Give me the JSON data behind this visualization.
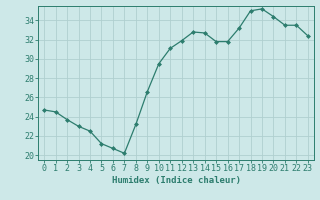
{
  "x": [
    0,
    1,
    2,
    3,
    4,
    5,
    6,
    7,
    8,
    9,
    10,
    11,
    12,
    13,
    14,
    15,
    16,
    17,
    18,
    19,
    20,
    21,
    22,
    23
  ],
  "y": [
    24.7,
    24.5,
    23.7,
    23.0,
    22.5,
    21.2,
    20.7,
    20.2,
    23.2,
    26.6,
    29.5,
    31.1,
    31.9,
    32.8,
    32.7,
    31.8,
    31.8,
    33.2,
    35.0,
    35.2,
    34.4,
    33.5,
    33.5,
    32.4
  ],
  "line_color": "#2d7d6e",
  "marker": "D",
  "marker_size": 2.0,
  "bg_color": "#cde8e8",
  "grid_color": "#b0cfcf",
  "axis_color": "#2d7d6e",
  "xlabel": "Humidex (Indice chaleur)",
  "ylabel": "",
  "xlim": [
    -0.5,
    23.5
  ],
  "ylim": [
    19.5,
    35.5
  ],
  "yticks": [
    20,
    22,
    24,
    26,
    28,
    30,
    32,
    34
  ],
  "xticks": [
    0,
    1,
    2,
    3,
    4,
    5,
    6,
    7,
    8,
    9,
    10,
    11,
    12,
    13,
    14,
    15,
    16,
    17,
    18,
    19,
    20,
    21,
    22,
    23
  ],
  "fontsize_label": 6.5,
  "fontsize_ticks": 6.0
}
